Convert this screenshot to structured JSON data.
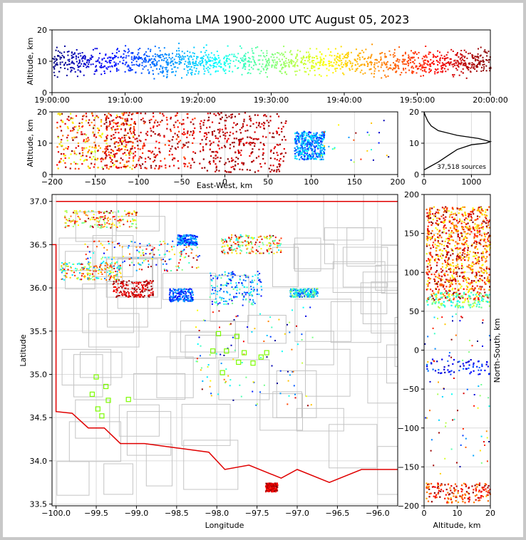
{
  "title": "Oklahoma LMA 1900-2000 UTC August 05, 2023",
  "chart_data": [
    {
      "id": "time-height",
      "type": "scatter",
      "xlabel": "",
      "ylabel": "Altitude, km",
      "x_ticks": [
        "19:00:00",
        "19:10:00",
        "19:20:00",
        "19:30:00",
        "19:40:00",
        "19:50:00",
        "20:00:00"
      ],
      "x_range_minutes": [
        0,
        60
      ],
      "ylim": [
        0,
        20
      ],
      "y_ticks": [
        0,
        10,
        20
      ],
      "color_by": "time",
      "colormap": "jet",
      "grid": true
    },
    {
      "id": "ew-height",
      "type": "scatter",
      "xlabel": "East-West, km",
      "ylabel": "Altitude, km",
      "xlim": [
        -200,
        200
      ],
      "x_ticks": [
        -200,
        -150,
        -100,
        -50,
        0,
        50,
        100,
        150,
        200
      ],
      "ylim": [
        0,
        20
      ],
      "y_ticks": [
        0,
        10,
        20
      ],
      "clusters": [
        {
          "x": [
            -195,
            -105
          ],
          "alt": [
            2,
            20
          ],
          "color": "mixed-red"
        },
        {
          "x": [
            -140,
            -35
          ],
          "alt": [
            2,
            20
          ],
          "color": "red"
        },
        {
          "x": [
            -30,
            70
          ],
          "alt": [
            1,
            20
          ],
          "color": "dark-red"
        },
        {
          "x": [
            80,
            115
          ],
          "alt": [
            5,
            14
          ],
          "color": "blue"
        }
      ],
      "grid": true
    },
    {
      "id": "alt-histogram",
      "type": "line",
      "xlim": [
        0,
        1400
      ],
      "x_ticks": [
        0,
        1000
      ],
      "ylim": [
        0,
        20
      ],
      "y_ticks": [
        0,
        10,
        20
      ],
      "annotation": "37,518 sources",
      "profile": [
        [
          0,
          1.5
        ],
        [
          120,
          2.5
        ],
        [
          300,
          4
        ],
        [
          500,
          6
        ],
        [
          700,
          8
        ],
        [
          1000,
          9.5
        ],
        [
          1300,
          10
        ],
        [
          1400,
          10.5
        ],
        [
          1150,
          11.5
        ],
        [
          700,
          12.5
        ],
        [
          300,
          14
        ],
        [
          150,
          15.5
        ],
        [
          80,
          17
        ],
        [
          20,
          19
        ],
        [
          0,
          20
        ]
      ],
      "grid": true
    },
    {
      "id": "plan-view",
      "type": "scatter",
      "xlabel": "Longitude",
      "ylabel": "Latitude",
      "xlim": [
        -100.05,
        -95.75
      ],
      "x_ticks": [
        -100.0,
        -99.5,
        -99.0,
        -98.5,
        -98.0,
        -97.5,
        -97.0,
        -96.5,
        -96.0
      ],
      "ylim": [
        33.48,
        37.08
      ],
      "y_ticks": [
        33.5,
        34.0,
        34.5,
        35.0,
        35.5,
        36.0,
        36.5,
        37.0
      ],
      "stations": [
        [
          -99.5,
          34.97
        ],
        [
          -99.38,
          34.86
        ],
        [
          -99.55,
          34.77
        ],
        [
          -99.35,
          34.7
        ],
        [
          -99.48,
          34.6
        ],
        [
          -99.43,
          34.52
        ],
        [
          -99.1,
          34.71
        ],
        [
          -97.98,
          35.47
        ],
        [
          -97.75,
          35.44
        ],
        [
          -98.05,
          35.27
        ],
        [
          -97.88,
          35.27
        ],
        [
          -97.93,
          35.02
        ],
        [
          -97.73,
          35.14
        ],
        [
          -97.66,
          35.25
        ],
        [
          -97.55,
          35.13
        ],
        [
          -97.45,
          35.2
        ],
        [
          -97.38,
          35.25
        ]
      ],
      "grid": true
    },
    {
      "id": "ns-height",
      "type": "scatter",
      "xlabel": "Altitude, km",
      "ylabel": "North-South, km",
      "xlim": [
        0,
        20
      ],
      "x_ticks": [
        0,
        10,
        20
      ],
      "ylim": [
        -200,
        200
      ],
      "y_ticks": [
        -200,
        -150,
        -100,
        -50,
        0,
        50,
        100,
        150,
        200
      ],
      "grid": true
    }
  ],
  "colors": {
    "border": "#e00000",
    "county": "#c4c4c4",
    "station": "#7cfc00",
    "grid": "#dcdcdc"
  }
}
